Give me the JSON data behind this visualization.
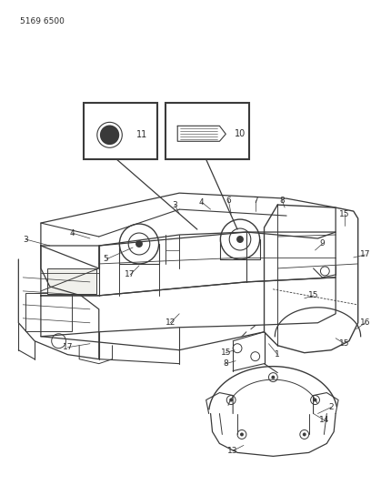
{
  "title": "5169 6500",
  "bg_color": "#ffffff",
  "lc": "#3a3a3a",
  "tc": "#2a2a2a",
  "fig_w": 4.08,
  "fig_h": 5.33,
  "dpi": 100
}
